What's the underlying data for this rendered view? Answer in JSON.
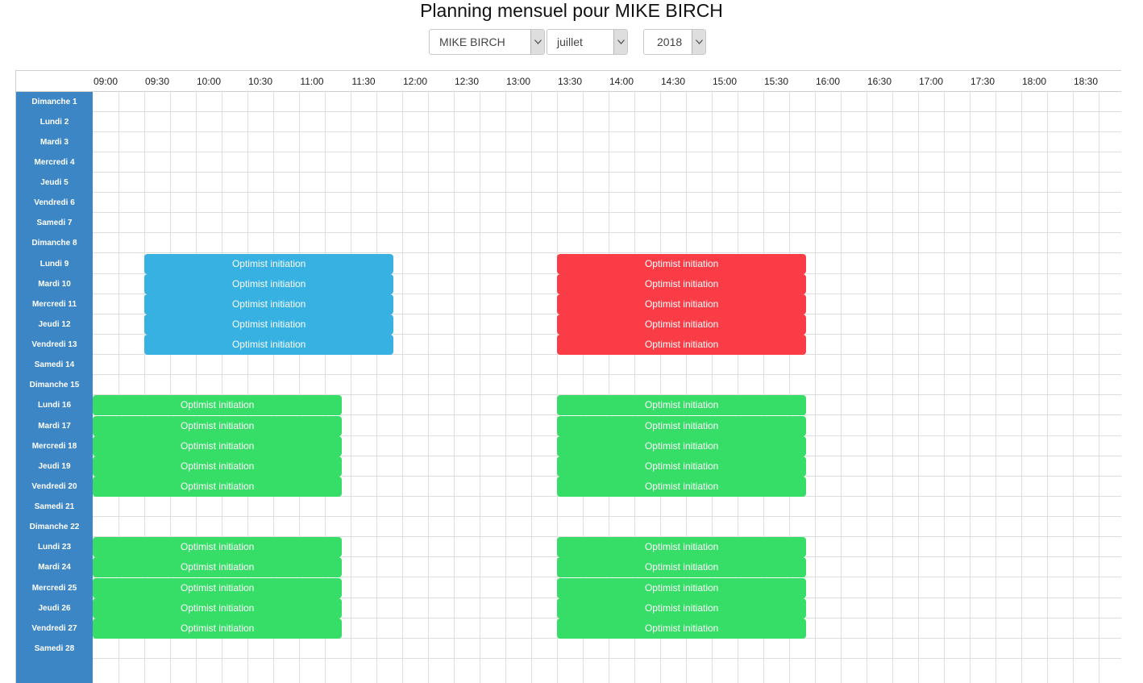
{
  "header": {
    "title": "Planning mensuel pour MIKE BIRCH"
  },
  "filters": {
    "instructor": {
      "value": "MIKE BIRCH"
    },
    "month": {
      "value": "juillet"
    },
    "year": {
      "value": "2018"
    }
  },
  "times": [
    "09:00",
    "09:30",
    "10:00",
    "10:30",
    "11:00",
    "11:30",
    "12:00",
    "12:30",
    "13:00",
    "13:30",
    "14:00",
    "14:30",
    "15:00",
    "15:30",
    "16:00",
    "16:30",
    "17:00",
    "17:30",
    "18:00",
    "18:30"
  ],
  "days": [
    {
      "label": "Dimanche 1"
    },
    {
      "label": "Lundi 2"
    },
    {
      "label": "Mardi 3"
    },
    {
      "label": "Mercredi 4"
    },
    {
      "label": "Jeudi 5"
    },
    {
      "label": "Vendredi 6"
    },
    {
      "label": "Samedi 7"
    },
    {
      "label": "Dimanche 8"
    },
    {
      "label": "Lundi 9"
    },
    {
      "label": "Mardi 10"
    },
    {
      "label": "Mercredi 11"
    },
    {
      "label": "Jeudi 12"
    },
    {
      "label": "Vendredi 13"
    },
    {
      "label": "Samedi 14"
    },
    {
      "label": "Dimanche 15"
    },
    {
      "label": "Lundi 16"
    },
    {
      "label": "Mardi 17"
    },
    {
      "label": "Mercredi 18"
    },
    {
      "label": "Jeudi 19"
    },
    {
      "label": "Vendredi 20"
    },
    {
      "label": "Samedi 21"
    },
    {
      "label": "Dimanche 22"
    },
    {
      "label": "Lundi 23"
    },
    {
      "label": "Mardi 24"
    },
    {
      "label": "Mercredi 25"
    },
    {
      "label": "Jeudi 26"
    },
    {
      "label": "Vendredi 27"
    },
    {
      "label": "Samedi 28"
    }
  ],
  "colors": {
    "blue": "#36b1e2",
    "red": "#f93c46",
    "green": "#36dd66",
    "day_column": "#3d86c6"
  },
  "events": [
    {
      "day": 8,
      "start": "09:30",
      "end": "11:55",
      "title": "Optimist initiation",
      "color": "blue"
    },
    {
      "day": 9,
      "start": "09:30",
      "end": "11:55",
      "title": "Optimist initiation",
      "color": "blue"
    },
    {
      "day": 10,
      "start": "09:30",
      "end": "11:55",
      "title": "Optimist initiation",
      "color": "blue"
    },
    {
      "day": 11,
      "start": "09:30",
      "end": "11:55",
      "title": "Optimist initiation",
      "color": "blue"
    },
    {
      "day": 12,
      "start": "09:30",
      "end": "11:55",
      "title": "Optimist initiation",
      "color": "blue"
    },
    {
      "day": 8,
      "start": "13:30",
      "end": "15:55",
      "title": "Optimist initiation",
      "color": "red"
    },
    {
      "day": 9,
      "start": "13:30",
      "end": "15:55",
      "title": "Optimist initiation",
      "color": "red"
    },
    {
      "day": 10,
      "start": "13:30",
      "end": "15:55",
      "title": "Optimist initiation",
      "color": "red"
    },
    {
      "day": 11,
      "start": "13:30",
      "end": "15:55",
      "title": "Optimist initiation",
      "color": "red"
    },
    {
      "day": 12,
      "start": "13:30",
      "end": "15:55",
      "title": "Optimist initiation",
      "color": "red"
    },
    {
      "day": 15,
      "start": "09:00",
      "end": "11:25",
      "title": "Optimist initiation",
      "color": "green"
    },
    {
      "day": 16,
      "start": "09:00",
      "end": "11:25",
      "title": "Optimist initiation",
      "color": "green"
    },
    {
      "day": 17,
      "start": "09:00",
      "end": "11:25",
      "title": "Optimist initiation",
      "color": "green"
    },
    {
      "day": 18,
      "start": "09:00",
      "end": "11:25",
      "title": "Optimist initiation",
      "color": "green"
    },
    {
      "day": 19,
      "start": "09:00",
      "end": "11:25",
      "title": "Optimist initiation",
      "color": "green"
    },
    {
      "day": 15,
      "start": "13:30",
      "end": "15:55",
      "title": "Optimist initiation",
      "color": "green"
    },
    {
      "day": 16,
      "start": "13:30",
      "end": "15:55",
      "title": "Optimist initiation",
      "color": "green"
    },
    {
      "day": 17,
      "start": "13:30",
      "end": "15:55",
      "title": "Optimist initiation",
      "color": "green"
    },
    {
      "day": 18,
      "start": "13:30",
      "end": "15:55",
      "title": "Optimist initiation",
      "color": "green"
    },
    {
      "day": 19,
      "start": "13:30",
      "end": "15:55",
      "title": "Optimist initiation",
      "color": "green"
    },
    {
      "day": 22,
      "start": "09:00",
      "end": "11:25",
      "title": "Optimist initiation",
      "color": "green"
    },
    {
      "day": 23,
      "start": "09:00",
      "end": "11:25",
      "title": "Optimist initiation",
      "color": "green"
    },
    {
      "day": 24,
      "start": "09:00",
      "end": "11:25",
      "title": "Optimist initiation",
      "color": "green"
    },
    {
      "day": 25,
      "start": "09:00",
      "end": "11:25",
      "title": "Optimist initiation",
      "color": "green"
    },
    {
      "day": 26,
      "start": "09:00",
      "end": "11:25",
      "title": "Optimist initiation",
      "color": "green"
    },
    {
      "day": 22,
      "start": "13:30",
      "end": "15:55",
      "title": "Optimist initiation",
      "color": "green"
    },
    {
      "day": 23,
      "start": "13:30",
      "end": "15:55",
      "title": "Optimist initiation",
      "color": "green"
    },
    {
      "day": 24,
      "start": "13:30",
      "end": "15:55",
      "title": "Optimist initiation",
      "color": "green"
    },
    {
      "day": 25,
      "start": "13:30",
      "end": "15:55",
      "title": "Optimist initiation",
      "color": "green"
    },
    {
      "day": 26,
      "start": "13:30",
      "end": "15:55",
      "title": "Optimist initiation",
      "color": "green"
    }
  ]
}
